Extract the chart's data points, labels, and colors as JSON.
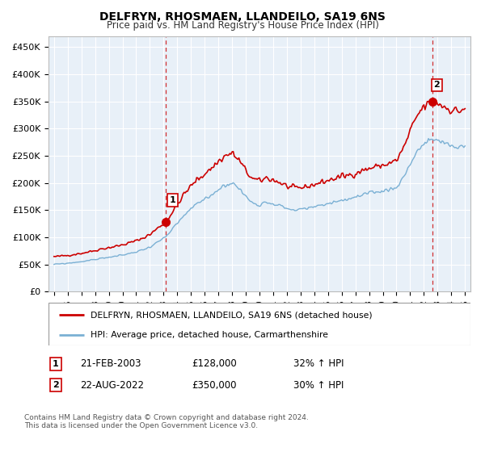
{
  "title": "DELFRYN, RHOSMAEN, LLANDEILO, SA19 6NS",
  "subtitle": "Price paid vs. HM Land Registry's House Price Index (HPI)",
  "ylabel_ticks": [
    "£0",
    "£50K",
    "£100K",
    "£150K",
    "£200K",
    "£250K",
    "£300K",
    "£350K",
    "£400K",
    "£450K"
  ],
  "ytick_vals": [
    0,
    50000,
    100000,
    150000,
    200000,
    250000,
    300000,
    350000,
    400000,
    450000
  ],
  "ylim": [
    0,
    470000
  ],
  "legend_line1": "DELFRYN, RHOSMAEN, LLANDEILO, SA19 6NS (detached house)",
  "legend_line2": "HPI: Average price, detached house, Carmarthenshire",
  "annotation1_label": "1",
  "annotation1_date": "21-FEB-2003",
  "annotation1_price": "£128,000",
  "annotation1_hpi": "32% ↑ HPI",
  "annotation2_label": "2",
  "annotation2_date": "22-AUG-2022",
  "annotation2_price": "£350,000",
  "annotation2_hpi": "30% ↑ HPI",
  "footnote1": "Contains HM Land Registry data © Crown copyright and database right 2024.",
  "footnote2": "This data is licensed under the Open Government Licence v3.0.",
  "red_color": "#cc0000",
  "blue_color": "#7ab0d4",
  "background_color": "#ffffff",
  "chart_bg_color": "#e8f0f8",
  "grid_color": "#ffffff",
  "vline1_x": 2003.15,
  "vline2_x": 2022.65,
  "marker1_x": 2003.15,
  "marker1_y": 128000,
  "marker2_x": 2022.65,
  "marker2_y": 350000,
  "xlim_left": 1994.6,
  "xlim_right": 2025.4
}
